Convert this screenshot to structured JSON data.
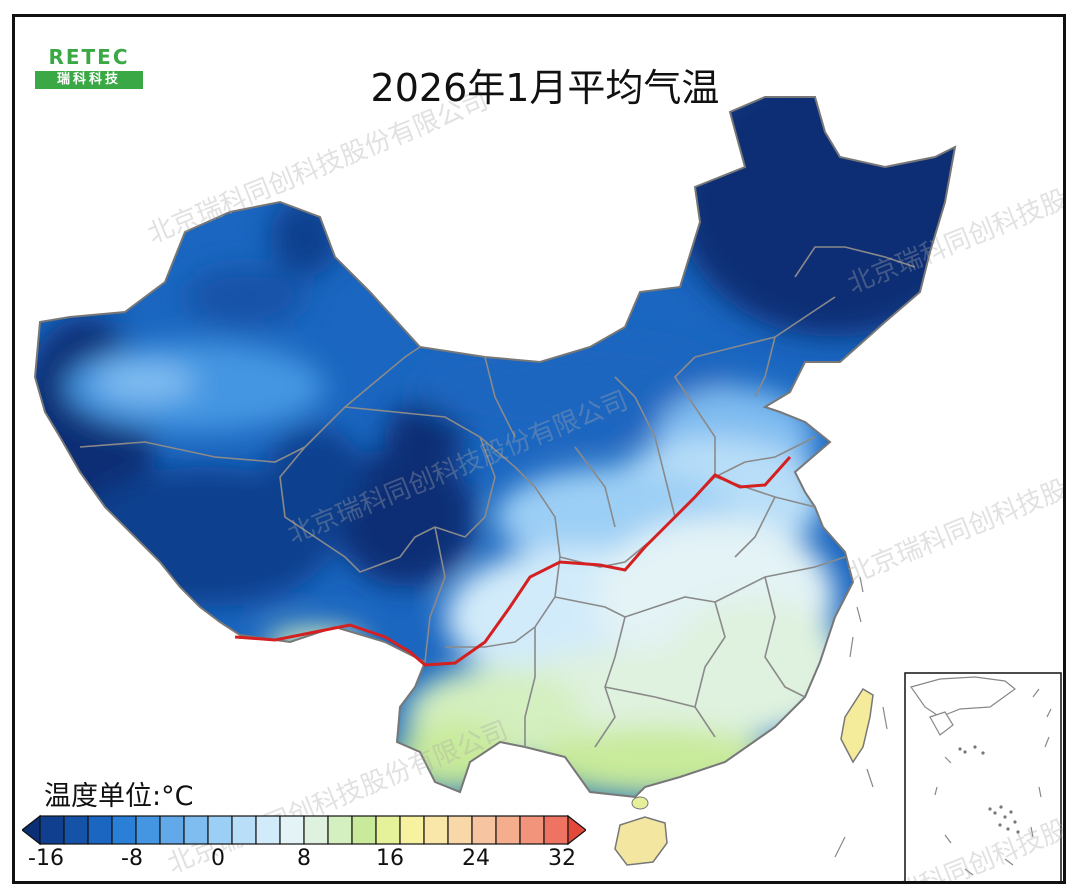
{
  "title": "2026年1月平均气温",
  "logo": {
    "brand": "RETEC",
    "sub": "瑞科科技"
  },
  "watermark": "北京瑞科同创科技股份有限公司",
  "legend": {
    "unit_label": "温度单位:°C",
    "min": -16,
    "max": 32,
    "step": 2,
    "tick_labels": [
      "-16",
      "-8",
      "0",
      "8",
      "16",
      "24",
      "32"
    ],
    "colors": [
      "#0b2f74",
      "#0f3f8e",
      "#1553a8",
      "#1a66c0",
      "#2a7fd6",
      "#4596e2",
      "#62a9ea",
      "#7fbcf0",
      "#9ccff5",
      "#b8def8",
      "#d2ebfa",
      "#e3f3f6",
      "#dff2df",
      "#d4efc0",
      "#c8ea9a",
      "#e6f29a",
      "#f6f2a0",
      "#f8e7a8",
      "#f8d8a8",
      "#f6c4a0",
      "#f4ae8e",
      "#f2947c",
      "#ee7362",
      "#e3493a"
    ]
  }
}
